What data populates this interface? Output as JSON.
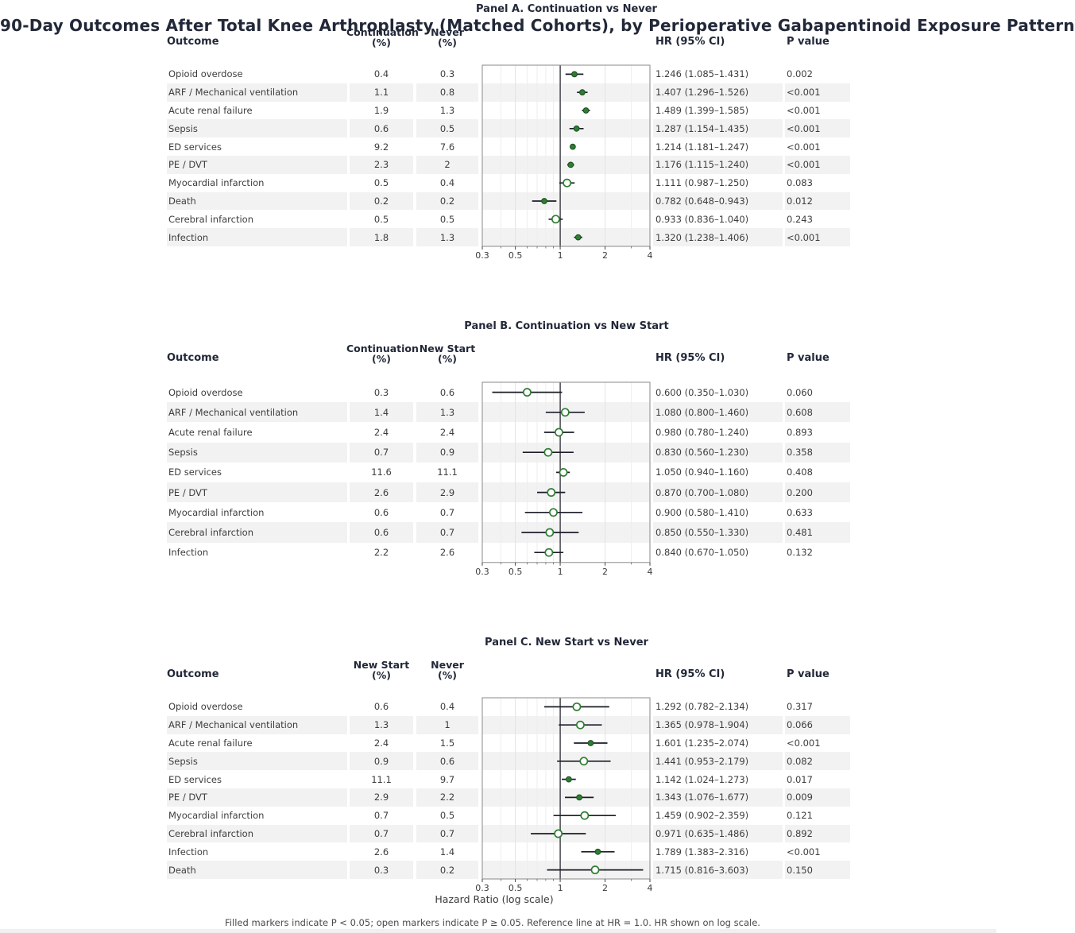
{
  "page_title": "90-Day Outcomes After Total Knee Arthroplasty (Matched Cohorts), by Perioperative Gabapentinoid Exposure Pattern",
  "footnote": "Filled markers indicate P < 0.05; open markers indicate P ≥ 0.05. Reference line at HR = 1.0. HR shown on log scale.",
  "axis": {
    "xlabel": "Hazard Ratio (log scale)",
    "scale": "log",
    "range": [
      0.3,
      4
    ],
    "tick_labels": [
      "0.3",
      "0.5",
      "1",
      "2",
      "4"
    ],
    "tick_values": [
      0.3,
      0.5,
      1,
      2,
      4
    ],
    "minor_tick_values": [
      0.4,
      0.6,
      0.7,
      0.8,
      0.9,
      3
    ],
    "reference_line": 1.0
  },
  "colors": {
    "marker_green": "#2e7d32",
    "filled_marker_edge": "#1b4c1e",
    "ci_line": "#1a1d28",
    "reference_line": "#2a2a33",
    "plot_border": "#8a8a8a",
    "grid_major": "#e3e3e3",
    "grid_minor": "#eeeeee",
    "stripe": "#f2f2f2",
    "heading_text": "#222838",
    "body_text": "#3d3d3d"
  },
  "chart_data": [
    {
      "type": "scatter",
      "variant": "forest-plot",
      "title": "Panel A. Continuation vs Never",
      "x_scale": "log",
      "x_range": [
        0.3,
        4
      ],
      "x_ticks": [
        0.3,
        0.5,
        1,
        2,
        4
      ],
      "reference_line": 1.0,
      "columns": {
        "outcome": "Outcome",
        "group1": [
          "Continuation",
          "(%)"
        ],
        "group2": [
          "Never",
          "(%)"
        ],
        "hr": "HR (95% CI)",
        "p": "P value"
      },
      "rows": [
        {
          "outcome": "Opioid overdose",
          "g1": "0.4",
          "g2": "0.3",
          "hr": 1.246,
          "lo": 1.085,
          "hi": 1.431,
          "hr_text": "1.246 (1.085–1.431)",
          "p": "0.002",
          "significant": true
        },
        {
          "outcome": "ARF / Mechanical ventilation",
          "g1": "1.1",
          "g2": "0.8",
          "hr": 1.407,
          "lo": 1.296,
          "hi": 1.526,
          "hr_text": "1.407 (1.296–1.526)",
          "p": "<0.001",
          "significant": true
        },
        {
          "outcome": "Acute renal failure",
          "g1": "1.9",
          "g2": "1.3",
          "hr": 1.489,
          "lo": 1.399,
          "hi": 1.585,
          "hr_text": "1.489 (1.399–1.585)",
          "p": "<0.001",
          "significant": true
        },
        {
          "outcome": "Sepsis",
          "g1": "0.6",
          "g2": "0.5",
          "hr": 1.287,
          "lo": 1.154,
          "hi": 1.435,
          "hr_text": "1.287 (1.154–1.435)",
          "p": "<0.001",
          "significant": true
        },
        {
          "outcome": "ED services",
          "g1": "9.2",
          "g2": "7.6",
          "hr": 1.214,
          "lo": 1.181,
          "hi": 1.247,
          "hr_text": "1.214 (1.181–1.247)",
          "p": "<0.001",
          "significant": true
        },
        {
          "outcome": "PE / DVT",
          "g1": "2.3",
          "g2": "2",
          "hr": 1.176,
          "lo": 1.115,
          "hi": 1.24,
          "hr_text": "1.176 (1.115–1.240)",
          "p": "<0.001",
          "significant": true
        },
        {
          "outcome": "Myocardial infarction",
          "g1": "0.5",
          "g2": "0.4",
          "hr": 1.111,
          "lo": 0.987,
          "hi": 1.25,
          "hr_text": "1.111 (0.987–1.250)",
          "p": "0.083",
          "significant": false
        },
        {
          "outcome": "Death",
          "g1": "0.2",
          "g2": "0.2",
          "hr": 0.782,
          "lo": 0.648,
          "hi": 0.943,
          "hr_text": "0.782 (0.648–0.943)",
          "p": "0.012",
          "significant": true
        },
        {
          "outcome": "Cerebral infarction",
          "g1": "0.5",
          "g2": "0.5",
          "hr": 0.933,
          "lo": 0.836,
          "hi": 1.04,
          "hr_text": "0.933 (0.836–1.040)",
          "p": "0.243",
          "significant": false
        },
        {
          "outcome": "Infection",
          "g1": "1.8",
          "g2": "1.3",
          "hr": 1.32,
          "lo": 1.238,
          "hi": 1.406,
          "hr_text": "1.320 (1.238–1.406)",
          "p": "<0.001",
          "significant": true
        }
      ]
    },
    {
      "type": "scatter",
      "variant": "forest-plot",
      "title": "Panel B. Continuation vs New Start",
      "x_scale": "log",
      "x_range": [
        0.3,
        4
      ],
      "x_ticks": [
        0.3,
        0.5,
        1,
        2,
        4
      ],
      "reference_line": 1.0,
      "columns": {
        "outcome": "Outcome",
        "group1": [
          "Continuation",
          "(%)"
        ],
        "group2": [
          "New Start",
          "(%)"
        ],
        "hr": "HR (95% CI)",
        "p": "P value"
      },
      "rows": [
        {
          "outcome": "Opioid overdose",
          "g1": "0.3",
          "g2": "0.6",
          "hr": 0.6,
          "lo": 0.35,
          "hi": 1.03,
          "hr_text": "0.600 (0.350–1.030)",
          "p": "0.060",
          "significant": false
        },
        {
          "outcome": "ARF / Mechanical ventilation",
          "g1": "1.4",
          "g2": "1.3",
          "hr": 1.08,
          "lo": 0.8,
          "hi": 1.46,
          "hr_text": "1.080 (0.800–1.460)",
          "p": "0.608",
          "significant": false
        },
        {
          "outcome": "Acute renal failure",
          "g1": "2.4",
          "g2": "2.4",
          "hr": 0.98,
          "lo": 0.78,
          "hi": 1.24,
          "hr_text": "0.980 (0.780–1.240)",
          "p": "0.893",
          "significant": false
        },
        {
          "outcome": "Sepsis",
          "g1": "0.7",
          "g2": "0.9",
          "hr": 0.83,
          "lo": 0.56,
          "hi": 1.23,
          "hr_text": "0.830 (0.560–1.230)",
          "p": "0.358",
          "significant": false
        },
        {
          "outcome": "ED services",
          "g1": "11.6",
          "g2": "11.1",
          "hr": 1.05,
          "lo": 0.94,
          "hi": 1.16,
          "hr_text": "1.050 (0.940–1.160)",
          "p": "0.408",
          "significant": false
        },
        {
          "outcome": "PE / DVT",
          "g1": "2.6",
          "g2": "2.9",
          "hr": 0.87,
          "lo": 0.7,
          "hi": 1.08,
          "hr_text": "0.870 (0.700–1.080)",
          "p": "0.200",
          "significant": false
        },
        {
          "outcome": "Myocardial infarction",
          "g1": "0.6",
          "g2": "0.7",
          "hr": 0.9,
          "lo": 0.58,
          "hi": 1.41,
          "hr_text": "0.900 (0.580–1.410)",
          "p": "0.633",
          "significant": false
        },
        {
          "outcome": "Cerebral infarction",
          "g1": "0.6",
          "g2": "0.7",
          "hr": 0.85,
          "lo": 0.55,
          "hi": 1.33,
          "hr_text": "0.850 (0.550–1.330)",
          "p": "0.481",
          "significant": false
        },
        {
          "outcome": "Infection",
          "g1": "2.2",
          "g2": "2.6",
          "hr": 0.84,
          "lo": 0.67,
          "hi": 1.05,
          "hr_text": "0.840 (0.670–1.050)",
          "p": "0.132",
          "significant": false
        }
      ]
    },
    {
      "type": "scatter",
      "variant": "forest-plot",
      "title": "Panel C. New Start vs Never",
      "x_scale": "log",
      "x_range": [
        0.3,
        4
      ],
      "x_ticks": [
        0.3,
        0.5,
        1,
        2,
        4
      ],
      "reference_line": 1.0,
      "columns": {
        "outcome": "Outcome",
        "group1": [
          "New Start",
          "(%)"
        ],
        "group2": [
          "Never",
          "(%)"
        ],
        "hr": "HR (95% CI)",
        "p": "P value"
      },
      "rows": [
        {
          "outcome": "Opioid overdose",
          "g1": "0.6",
          "g2": "0.4",
          "hr": 1.292,
          "lo": 0.782,
          "hi": 2.134,
          "hr_text": "1.292 (0.782–2.134)",
          "p": "0.317",
          "significant": false
        },
        {
          "outcome": "ARF / Mechanical ventilation",
          "g1": "1.3",
          "g2": "1",
          "hr": 1.365,
          "lo": 0.978,
          "hi": 1.904,
          "hr_text": "1.365 (0.978–1.904)",
          "p": "0.066",
          "significant": false
        },
        {
          "outcome": "Acute renal failure",
          "g1": "2.4",
          "g2": "1.5",
          "hr": 1.601,
          "lo": 1.235,
          "hi": 2.074,
          "hr_text": "1.601 (1.235–2.074)",
          "p": "<0.001",
          "significant": true
        },
        {
          "outcome": "Sepsis",
          "g1": "0.9",
          "g2": "0.6",
          "hr": 1.441,
          "lo": 0.953,
          "hi": 2.179,
          "hr_text": "1.441 (0.953–2.179)",
          "p": "0.082",
          "significant": false
        },
        {
          "outcome": "ED services",
          "g1": "11.1",
          "g2": "9.7",
          "hr": 1.142,
          "lo": 1.024,
          "hi": 1.273,
          "hr_text": "1.142 (1.024–1.273)",
          "p": "0.017",
          "significant": true
        },
        {
          "outcome": "PE / DVT",
          "g1": "2.9",
          "g2": "2.2",
          "hr": 1.343,
          "lo": 1.076,
          "hi": 1.677,
          "hr_text": "1.343 (1.076–1.677)",
          "p": "0.009",
          "significant": true
        },
        {
          "outcome": "Myocardial infarction",
          "g1": "0.7",
          "g2": "0.5",
          "hr": 1.459,
          "lo": 0.902,
          "hi": 2.359,
          "hr_text": "1.459 (0.902–2.359)",
          "p": "0.121",
          "significant": false
        },
        {
          "outcome": "Cerebral infarction",
          "g1": "0.7",
          "g2": "0.7",
          "hr": 0.971,
          "lo": 0.635,
          "hi": 1.486,
          "hr_text": "0.971 (0.635–1.486)",
          "p": "0.892",
          "significant": false
        },
        {
          "outcome": "Infection",
          "g1": "2.6",
          "g2": "1.4",
          "hr": 1.789,
          "lo": 1.383,
          "hi": 2.316,
          "hr_text": "1.789 (1.383–2.316)",
          "p": "<0.001",
          "significant": true
        },
        {
          "outcome": "Death",
          "g1": "0.3",
          "g2": "0.2",
          "hr": 1.715,
          "lo": 0.816,
          "hi": 3.603,
          "hr_text": "1.715 (0.816–3.603)",
          "p": "0.150",
          "significant": false
        }
      ]
    }
  ]
}
